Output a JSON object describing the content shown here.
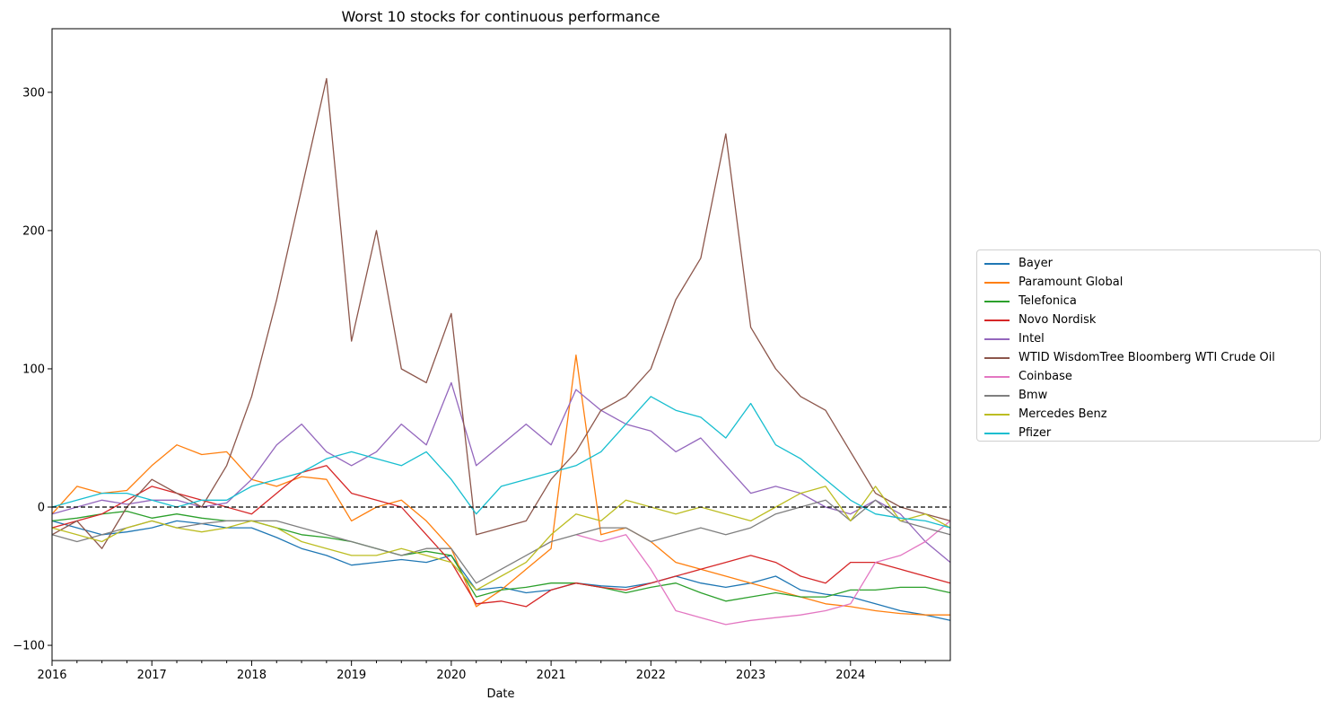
{
  "chart_data": {
    "type": "line",
    "title": "Worst 10 stocks for continuous performance",
    "xlabel": "Date",
    "ylabel": "",
    "xlim": [
      2016.0,
      2025.0
    ],
    "ylim": [
      -111,
      346
    ],
    "x_ticks": [
      {
        "value": 2016,
        "label": "2016"
      },
      {
        "value": 2017,
        "label": "2017"
      },
      {
        "value": 2018,
        "label": "2018"
      },
      {
        "value": 2019,
        "label": "2019"
      },
      {
        "value": 2020,
        "label": "2020"
      },
      {
        "value": 2021,
        "label": "2021"
      },
      {
        "value": 2022,
        "label": "2022"
      },
      {
        "value": 2023,
        "label": "2023"
      },
      {
        "value": 2024,
        "label": "2024"
      }
    ],
    "y_ticks": [
      {
        "value": -100,
        "label": "−100"
      },
      {
        "value": 0,
        "label": "0"
      },
      {
        "value": 100,
        "label": "100"
      },
      {
        "value": 200,
        "label": "200"
      },
      {
        "value": 300,
        "label": "300"
      }
    ],
    "reference_line": {
      "y": 0,
      "style": "dashed",
      "color": "#000000"
    },
    "legend_position": "outside-right",
    "grid": false,
    "x": [
      2016.0,
      2016.25,
      2016.5,
      2016.75,
      2017.0,
      2017.25,
      2017.5,
      2017.75,
      2018.0,
      2018.25,
      2018.5,
      2018.75,
      2019.0,
      2019.25,
      2019.5,
      2019.75,
      2020.0,
      2020.25,
      2020.5,
      2020.75,
      2021.0,
      2021.25,
      2021.5,
      2021.75,
      2022.0,
      2022.25,
      2022.5,
      2022.75,
      2023.0,
      2023.25,
      2023.5,
      2023.75,
      2024.0,
      2024.25,
      2024.5,
      2024.75,
      2025.0
    ],
    "series": [
      {
        "name": "Bayer",
        "color": "#1f77b4",
        "values": [
          -10,
          -15,
          -20,
          -18,
          -15,
          -10,
          -12,
          -15,
          -15,
          -22,
          -30,
          -35,
          -42,
          -40,
          -38,
          -40,
          -35,
          -60,
          -58,
          -62,
          -60,
          -55,
          -57,
          -58,
          -55,
          -50,
          -55,
          -58,
          -55,
          -50,
          -60,
          -63,
          -65,
          -70,
          -75,
          -78,
          -82
        ]
      },
      {
        "name": "Paramount Global",
        "color": "#ff7f0e",
        "values": [
          -5,
          15,
          10,
          12,
          30,
          45,
          38,
          40,
          20,
          15,
          22,
          20,
          -10,
          0,
          5,
          -10,
          -30,
          -72,
          -60,
          -45,
          -30,
          110,
          -20,
          -15,
          -25,
          -40,
          -45,
          -50,
          -55,
          -60,
          -65,
          -70,
          -72,
          -75,
          -77,
          -78,
          -78
        ]
      },
      {
        "name": "Telefonica",
        "color": "#2ca02c",
        "values": [
          -10,
          -8,
          -5,
          -3,
          -8,
          -5,
          -8,
          -10,
          -10,
          -15,
          -20,
          -22,
          -25,
          -30,
          -35,
          -32,
          -35,
          -65,
          -60,
          -58,
          -55,
          -55,
          -58,
          -62,
          -58,
          -55,
          -62,
          -68,
          -65,
          -62,
          -65,
          -65,
          -60,
          -60,
          -58,
          -58,
          -62
        ]
      },
      {
        "name": "Novo Nordisk",
        "color": "#d62728",
        "values": [
          -15,
          -10,
          -5,
          5,
          15,
          10,
          5,
          0,
          -5,
          10,
          25,
          30,
          10,
          5,
          0,
          -20,
          -40,
          -70,
          -68,
          -72,
          -60,
          -55,
          -58,
          -60,
          -55,
          -50,
          -45,
          -40,
          -35,
          -40,
          -50,
          -55,
          -40,
          -40,
          -45,
          -50,
          -55
        ]
      },
      {
        "name": "Intel",
        "color": "#9467bd",
        "values": [
          -5,
          0,
          5,
          2,
          5,
          5,
          0,
          3,
          20,
          45,
          60,
          40,
          30,
          40,
          60,
          45,
          90,
          30,
          45,
          60,
          45,
          85,
          70,
          60,
          55,
          40,
          50,
          30,
          10,
          15,
          10,
          0,
          -5,
          5,
          -5,
          -25,
          -40
        ]
      },
      {
        "name": "WTID WisdomTree Bloomberg WTI Crude Oil",
        "color": "#8c564b",
        "values": [
          -20,
          -10,
          -30,
          0,
          20,
          10,
          0,
          30,
          80,
          150,
          230,
          310,
          120,
          200,
          100,
          90,
          140,
          -20,
          -15,
          -10,
          20,
          40,
          70,
          80,
          100,
          150,
          180,
          270,
          130,
          100,
          80,
          70,
          40,
          10,
          0,
          -5,
          -10
        ]
      },
      {
        "name": "Coinbase",
        "color": "#e377c2",
        "values": [
          null,
          null,
          null,
          null,
          null,
          null,
          null,
          null,
          null,
          null,
          null,
          null,
          null,
          null,
          null,
          null,
          null,
          null,
          null,
          null,
          null,
          -20,
          -25,
          -20,
          -45,
          -75,
          -80,
          -85,
          -82,
          -80,
          -78,
          -75,
          -70,
          -40,
          -35,
          -25,
          -10
        ]
      },
      {
        "name": "Bmw",
        "color": "#7f7f7f",
        "values": [
          -20,
          -25,
          -20,
          -15,
          -10,
          -15,
          -12,
          -10,
          -10,
          -10,
          -15,
          -20,
          -25,
          -30,
          -35,
          -30,
          -30,
          -55,
          -45,
          -35,
          -25,
          -20,
          -15,
          -15,
          -25,
          -20,
          -15,
          -20,
          -15,
          -5,
          0,
          5,
          -10,
          5,
          -10,
          -15,
          -20
        ]
      },
      {
        "name": "Mercedes Benz",
        "color": "#bcbd22",
        "values": [
          -15,
          -20,
          -25,
          -15,
          -10,
          -15,
          -18,
          -15,
          -10,
          -15,
          -25,
          -30,
          -35,
          -35,
          -30,
          -35,
          -40,
          -60,
          -50,
          -40,
          -20,
          -5,
          -10,
          5,
          0,
          -5,
          0,
          -5,
          -10,
          0,
          10,
          15,
          -10,
          15,
          -10,
          -5,
          -15
        ]
      },
      {
        "name": "Pfizer",
        "color": "#17becf",
        "values": [
          0,
          5,
          10,
          10,
          5,
          0,
          5,
          5,
          15,
          20,
          25,
          35,
          40,
          35,
          30,
          40,
          20,
          -5,
          15,
          20,
          25,
          30,
          40,
          60,
          80,
          70,
          65,
          50,
          75,
          45,
          35,
          20,
          5,
          -5,
          -8,
          -10,
          -15
        ]
      }
    ]
  }
}
